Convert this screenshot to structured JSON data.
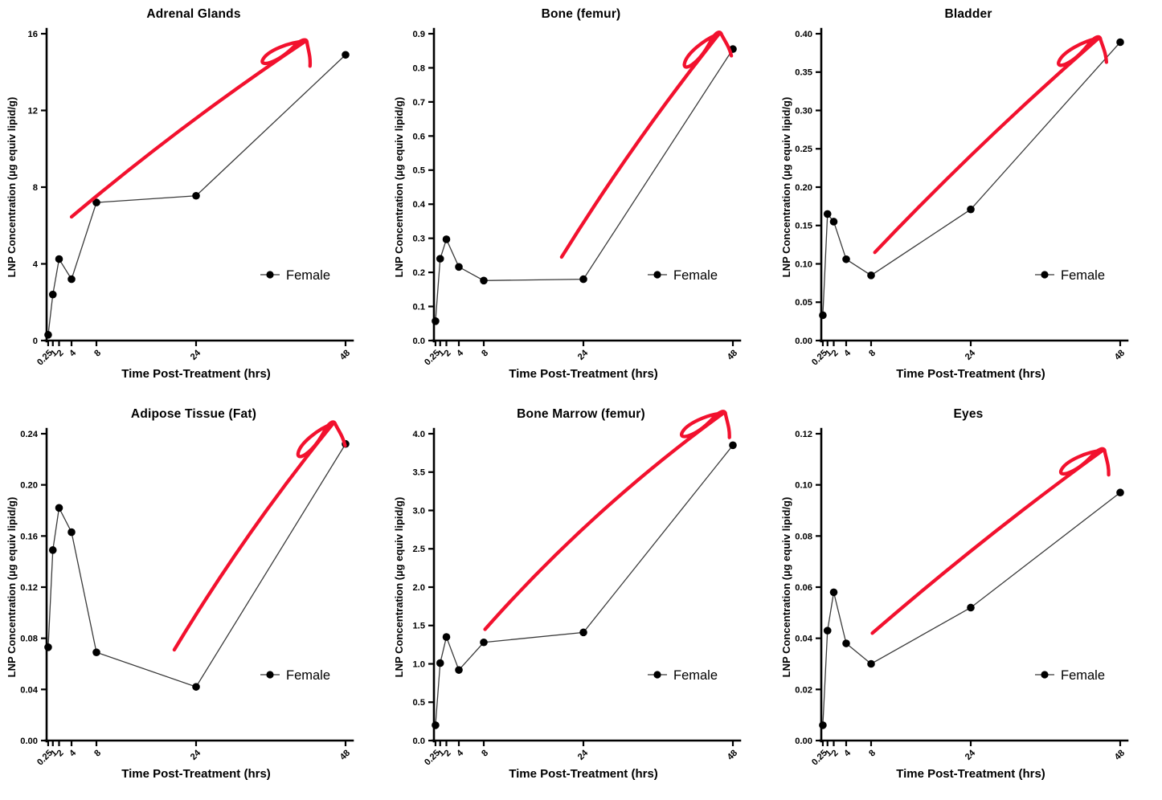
{
  "figure": {
    "background": "#ffffff",
    "x_label": "Time Post-Treatment (hrs)",
    "y_label": "LNP Concentration (µg equiv lipid/g)",
    "legend_label": "Female",
    "marker_color": "#000000",
    "line_color": "#3a3a3a",
    "axis_color": "#000000",
    "arrow_color": "#f2112e",
    "x_tick_labels": [
      "0.25",
      "1",
      "2",
      "4",
      "8",
      "24",
      "48"
    ],
    "x_tick_values": [
      0.25,
      1,
      2,
      4,
      8,
      24,
      48
    ],
    "x_range": [
      0,
      48
    ],
    "grid": false,
    "legend_position": "center-right"
  },
  "chart_data": [
    {
      "type": "line",
      "title": "Adrenal Glands",
      "xlabel": "Time Post-Treatment (hrs)",
      "ylabel": "LNP Concentration (µg equiv lipid/g)",
      "legend": "Female",
      "x": [
        0.25,
        1,
        2,
        4,
        8,
        24,
        48
      ],
      "values": [
        0.3,
        2.4,
        4.25,
        3.2,
        7.2,
        7.55,
        14.9
      ],
      "ylim": [
        0,
        16
      ],
      "y_tick_labels": [
        "0",
        "4",
        "8",
        "12",
        "16"
      ],
      "annotation_arrow": {
        "from": [
          4.0,
          6.45
        ],
        "to": [
          41.5,
          15.6
        ],
        "bow": -10
      }
    },
    {
      "type": "line",
      "title": "Bone (femur)",
      "xlabel": "Time Post-Treatment (hrs)",
      "ylabel": "LNP Concentration (µg equiv lipid/g)",
      "legend": "Female",
      "x": [
        0.25,
        1,
        2,
        4,
        8,
        24,
        48
      ],
      "values": [
        0.057,
        0.24,
        0.297,
        0.216,
        0.176,
        0.18,
        0.855
      ],
      "ylim": [
        0,
        0.9
      ],
      "y_tick_labels": [
        "0.0",
        "0.1",
        "0.2",
        "0.3",
        "0.4",
        "0.5",
        "0.6",
        "0.7",
        "0.8",
        "0.9"
      ],
      "annotation_arrow": {
        "from": [
          20.5,
          0.245
        ],
        "to": [
          45.8,
          0.9
        ],
        "bow": -10
      }
    },
    {
      "type": "line",
      "title": "Bladder",
      "xlabel": "Time Post-Treatment (hrs)",
      "ylabel": "LNP Concentration (µg equiv lipid/g)",
      "legend": "Female",
      "x": [
        0.25,
        1,
        2,
        4,
        8,
        24,
        48
      ],
      "values": [
        0.033,
        0.165,
        0.155,
        0.106,
        0.085,
        0.171,
        0.389
      ],
      "ylim": [
        0,
        0.4
      ],
      "y_tick_labels": [
        "0.00",
        "0.05",
        "0.10",
        "0.15",
        "0.20",
        "0.25",
        "0.30",
        "0.35",
        "0.40"
      ],
      "annotation_arrow": {
        "from": [
          8.6,
          0.115
        ],
        "to": [
          44.5,
          0.394
        ],
        "bow": -9
      }
    },
    {
      "type": "line",
      "title": "Adipose Tissue (Fat)",
      "xlabel": "Time Post-Treatment (hrs)",
      "ylabel": "LNP Concentration (µg equiv lipid/g)",
      "legend": "Female",
      "x": [
        0.25,
        1,
        2,
        4,
        8,
        24,
        48
      ],
      "values": [
        0.073,
        0.149,
        0.182,
        0.163,
        0.069,
        0.042,
        0.232
      ],
      "ylim": [
        0,
        0.24
      ],
      "y_tick_labels": [
        "0.00",
        "0.04",
        "0.08",
        "0.12",
        "0.16",
        "0.20",
        "0.24"
      ],
      "annotation_arrow": {
        "from": [
          20.5,
          0.071
        ],
        "to": [
          46.0,
          0.248
        ],
        "bow": -12
      }
    },
    {
      "type": "line",
      "title": "Bone Marrow (femur)",
      "xlabel": "Time Post-Treatment (hrs)",
      "ylabel": "LNP Concentration (µg equiv lipid/g)",
      "legend": "Female",
      "x": [
        0.25,
        1,
        2,
        4,
        8,
        24,
        48
      ],
      "values": [
        0.2,
        1.01,
        1.35,
        0.92,
        1.28,
        1.41,
        3.85
      ],
      "ylim": [
        0,
        4.0
      ],
      "y_tick_labels": [
        "0.0",
        "0.5",
        "1.0",
        "1.5",
        "2.0",
        "2.5",
        "3.0",
        "3.5",
        "4.0"
      ],
      "annotation_arrow": {
        "from": [
          8.2,
          1.45
        ],
        "to": [
          46.5,
          4.27
        ],
        "bow": -22
      }
    },
    {
      "type": "line",
      "title": "Eyes",
      "xlabel": "Time Post-Treatment (hrs)",
      "ylabel": "LNP Concentration (µg equiv lipid/g)",
      "legend": "Female",
      "x": [
        0.25,
        1,
        2,
        4,
        8,
        24,
        48
      ],
      "values": [
        0.006,
        0.043,
        0.058,
        0.038,
        0.03,
        0.052,
        0.097
      ],
      "ylim": [
        0,
        0.12
      ],
      "y_tick_labels": [
        "0.00",
        "0.02",
        "0.04",
        "0.06",
        "0.08",
        "0.10",
        "0.12"
      ],
      "annotation_arrow": {
        "from": [
          8.2,
          0.042
        ],
        "to": [
          45.2,
          0.1135
        ],
        "bow": -8
      }
    }
  ]
}
